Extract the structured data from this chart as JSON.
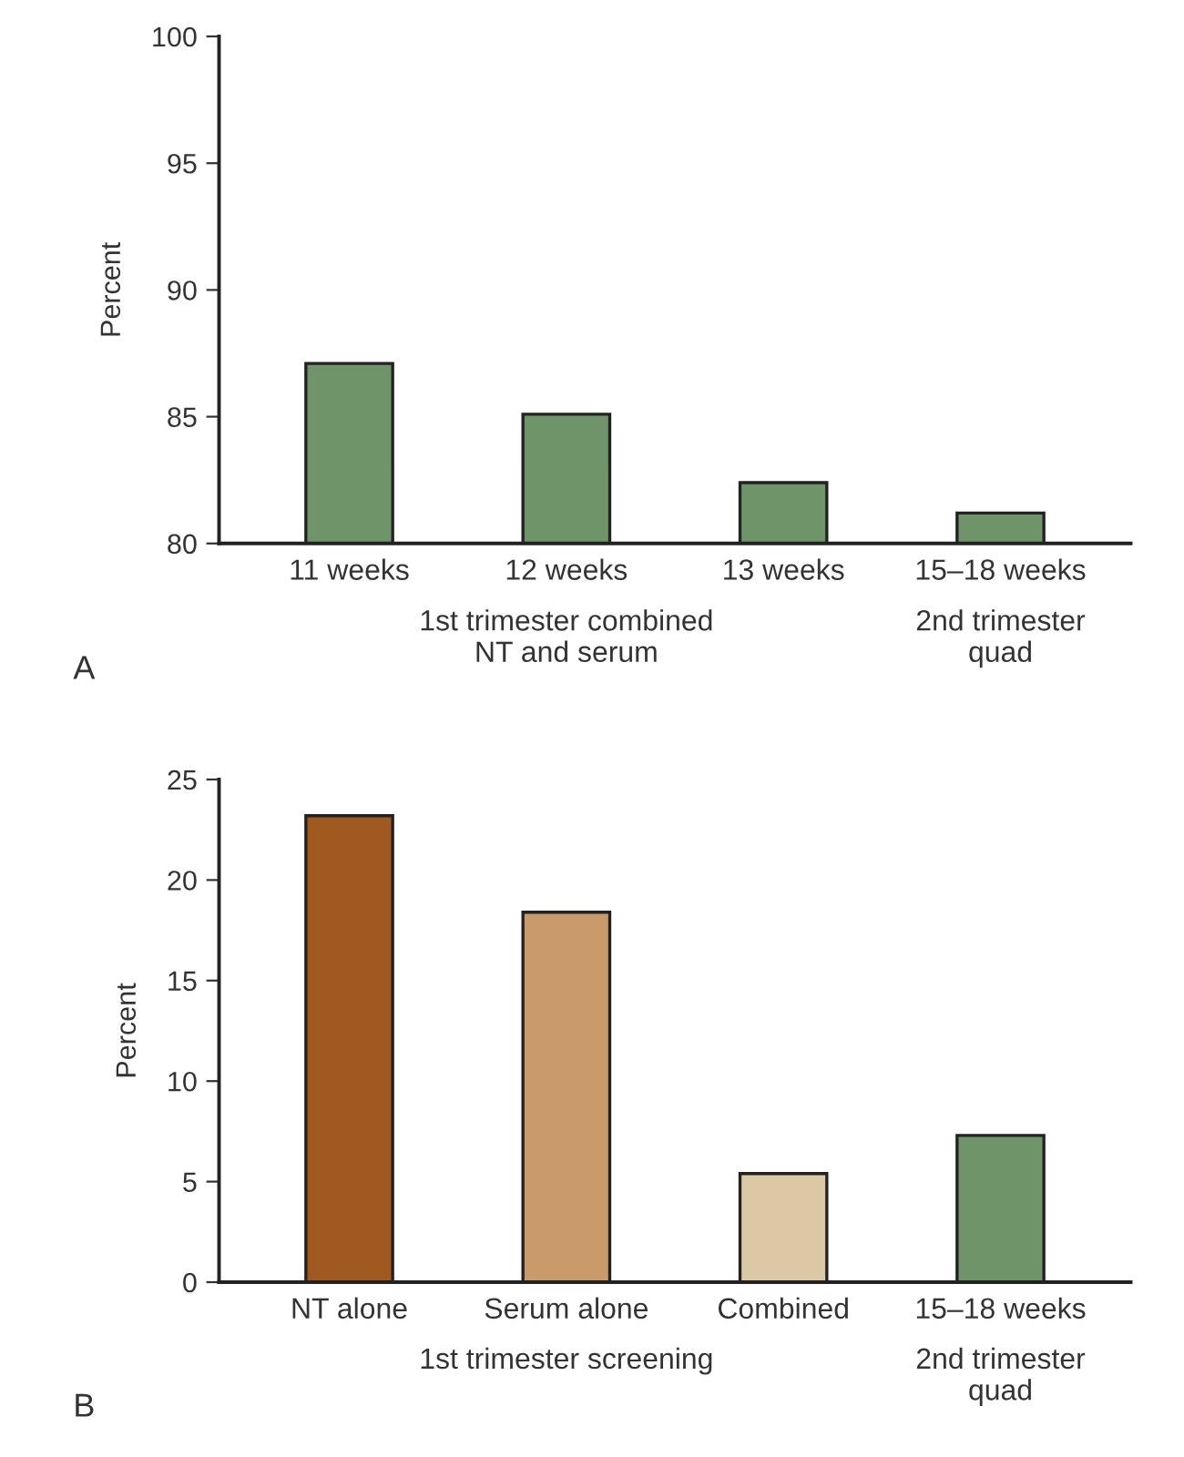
{
  "chart_data": [
    {
      "type": "bar",
      "ylabel": "Percent",
      "categories": [
        "11 weeks",
        "12 weeks",
        "13 weeks",
        "15–18 weeks"
      ],
      "values": [
        87.1,
        85.1,
        82.4,
        81.2
      ],
      "colors": [
        "#6f9469",
        "#6f9469",
        "#6f9469",
        "#6f9469"
      ],
      "ylim": [
        80,
        100
      ],
      "yticks": [
        80,
        85,
        90,
        95,
        100
      ],
      "grid": false,
      "legend": false,
      "annotations": [
        "1st trimester combined\nNT and serum",
        "2nd trimester\nquad",
        "A"
      ]
    },
    {
      "type": "bar",
      "ylabel": "Percent",
      "categories": [
        "NT alone",
        "Serum alone",
        "Combined",
        "15–18 weeks"
      ],
      "values": [
        23.2,
        18.4,
        5.4,
        7.3
      ],
      "colors": [
        "#a0591f",
        "#c99a6a",
        "#dcc8a4",
        "#6f9469"
      ],
      "ylim": [
        0,
        25
      ],
      "yticks": [
        0,
        5,
        10,
        15,
        20,
        25
      ],
      "grid": false,
      "legend": false,
      "annotations": [
        "1st trimester screening",
        "2nd trimester\nquad",
        "B"
      ]
    }
  ]
}
